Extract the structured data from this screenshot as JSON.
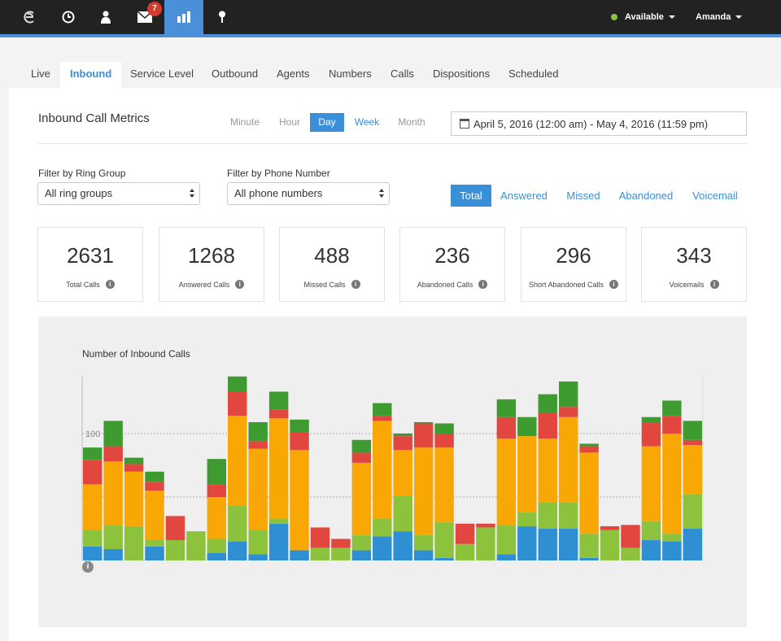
{
  "topbar": {
    "notification_count": "7",
    "status_label": "Available",
    "user_name": "Amanda",
    "status_color": "#8bc34a"
  },
  "tabs": [
    "Live",
    "Inbound",
    "Service Level",
    "Outbound",
    "Agents",
    "Numbers",
    "Calls",
    "Dispositions",
    "Scheduled"
  ],
  "active_tab": "Inbound",
  "metrics": {
    "title": "Inbound Call Metrics",
    "ranges": [
      "Minute",
      "Hour",
      "Day",
      "Week",
      "Month"
    ],
    "active_range": "Day",
    "date_range": "April 5, 2016 (12:00 am) - May 4, 2016 (11:59 pm)"
  },
  "filters": {
    "ring_group_label": "Filter by Ring Group",
    "ring_group_value": "All ring groups",
    "phone_label": "Filter by Phone Number",
    "phone_value": "All phone numbers"
  },
  "call_types": [
    "Total",
    "Answered",
    "Missed",
    "Abandoned",
    "Voicemail"
  ],
  "active_call_type": "Total",
  "cards": [
    {
      "value": "2631",
      "label": "Total Calls"
    },
    {
      "value": "1268",
      "label": "Answered Calls"
    },
    {
      "value": "488",
      "label": "Missed Calls"
    },
    {
      "value": "236",
      "label": "Abandoned Calls"
    },
    {
      "value": "296",
      "label": "Short Abandoned Calls"
    },
    {
      "value": "343",
      "label": "Voicemails"
    }
  ],
  "chart_data": {
    "type": "bar",
    "stacked": true,
    "title": "Number of Inbound Calls",
    "ylim": [
      0,
      145
    ],
    "yticks": [
      0,
      50,
      100
    ],
    "grid": true,
    "series": [
      {
        "color": "#2e8fd3",
        "values": [
          11,
          9,
          0,
          11,
          0,
          0,
          6,
          15,
          5,
          29,
          8,
          0,
          0,
          8,
          19,
          23,
          8,
          2,
          0,
          0,
          5,
          27,
          25,
          25,
          2,
          0,
          0,
          16,
          15,
          25
        ]
      },
      {
        "color": "#8dc23c",
        "values": [
          13,
          19,
          27,
          5,
          16,
          23,
          11,
          28,
          19,
          4,
          0,
          10,
          10,
          12,
          14,
          28,
          12,
          28,
          13,
          26,
          23,
          11,
          21,
          21,
          19,
          24,
          10,
          15,
          6,
          27
        ]
      },
      {
        "color": "#f9a705",
        "values": [
          36,
          50,
          43,
          39,
          0,
          0,
          33,
          71,
          64,
          79,
          79,
          0,
          0,
          57,
          77,
          36,
          69,
          59,
          0,
          0,
          68,
          60,
          50,
          67,
          64,
          0,
          0,
          59,
          79,
          39
        ]
      },
      {
        "color": "#e1473f",
        "values": [
          19,
          12,
          6,
          7,
          19,
          0,
          10,
          19,
          6,
          7,
          14,
          16,
          7,
          8,
          4,
          11,
          19,
          11,
          16,
          3,
          17,
          0,
          20,
          8,
          5,
          3,
          18,
          19,
          14,
          4
        ]
      },
      {
        "color": "#3e9b2f",
        "values": [
          10,
          20,
          5,
          8,
          0,
          0,
          20,
          12,
          15,
          14,
          10,
          0,
          0,
          10,
          10,
          2,
          1,
          8,
          0,
          0,
          14,
          15,
          15,
          20,
          2,
          0,
          0,
          4,
          12,
          15
        ]
      }
    ]
  }
}
